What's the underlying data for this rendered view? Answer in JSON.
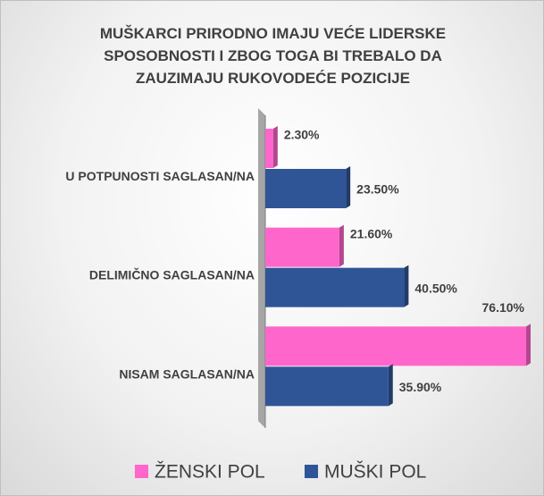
{
  "chart_data": {
    "type": "bar",
    "orientation": "horizontal",
    "title": "MUŠKARCI PRIRODNO IMAJU VEĆE LIDERSKE SPOSOBNOSTI I ZBOG TOGA BI TREBALO DA ZAUZIMAJU RUKOVODEĆE POZICIJE",
    "categories": [
      "U POTPUNOSTI SAGLASAN/NA",
      "DELIMIČNO SAGLASAN/NA",
      "NISAM SAGLASAN/NA"
    ],
    "series": [
      {
        "name": "ŽENSKI POL",
        "color": "#ff66cc",
        "values": [
          2.3,
          21.6,
          76.1
        ],
        "value_labels": [
          "2.30%",
          "21.60%",
          "76.10%"
        ]
      },
      {
        "name": "MUŠKI POL",
        "color": "#2f5597",
        "values": [
          23.5,
          40.5,
          35.9
        ],
        "value_labels": [
          "23.50%",
          "40.50%",
          "35.90%"
        ]
      }
    ],
    "legend": "bottom"
  }
}
